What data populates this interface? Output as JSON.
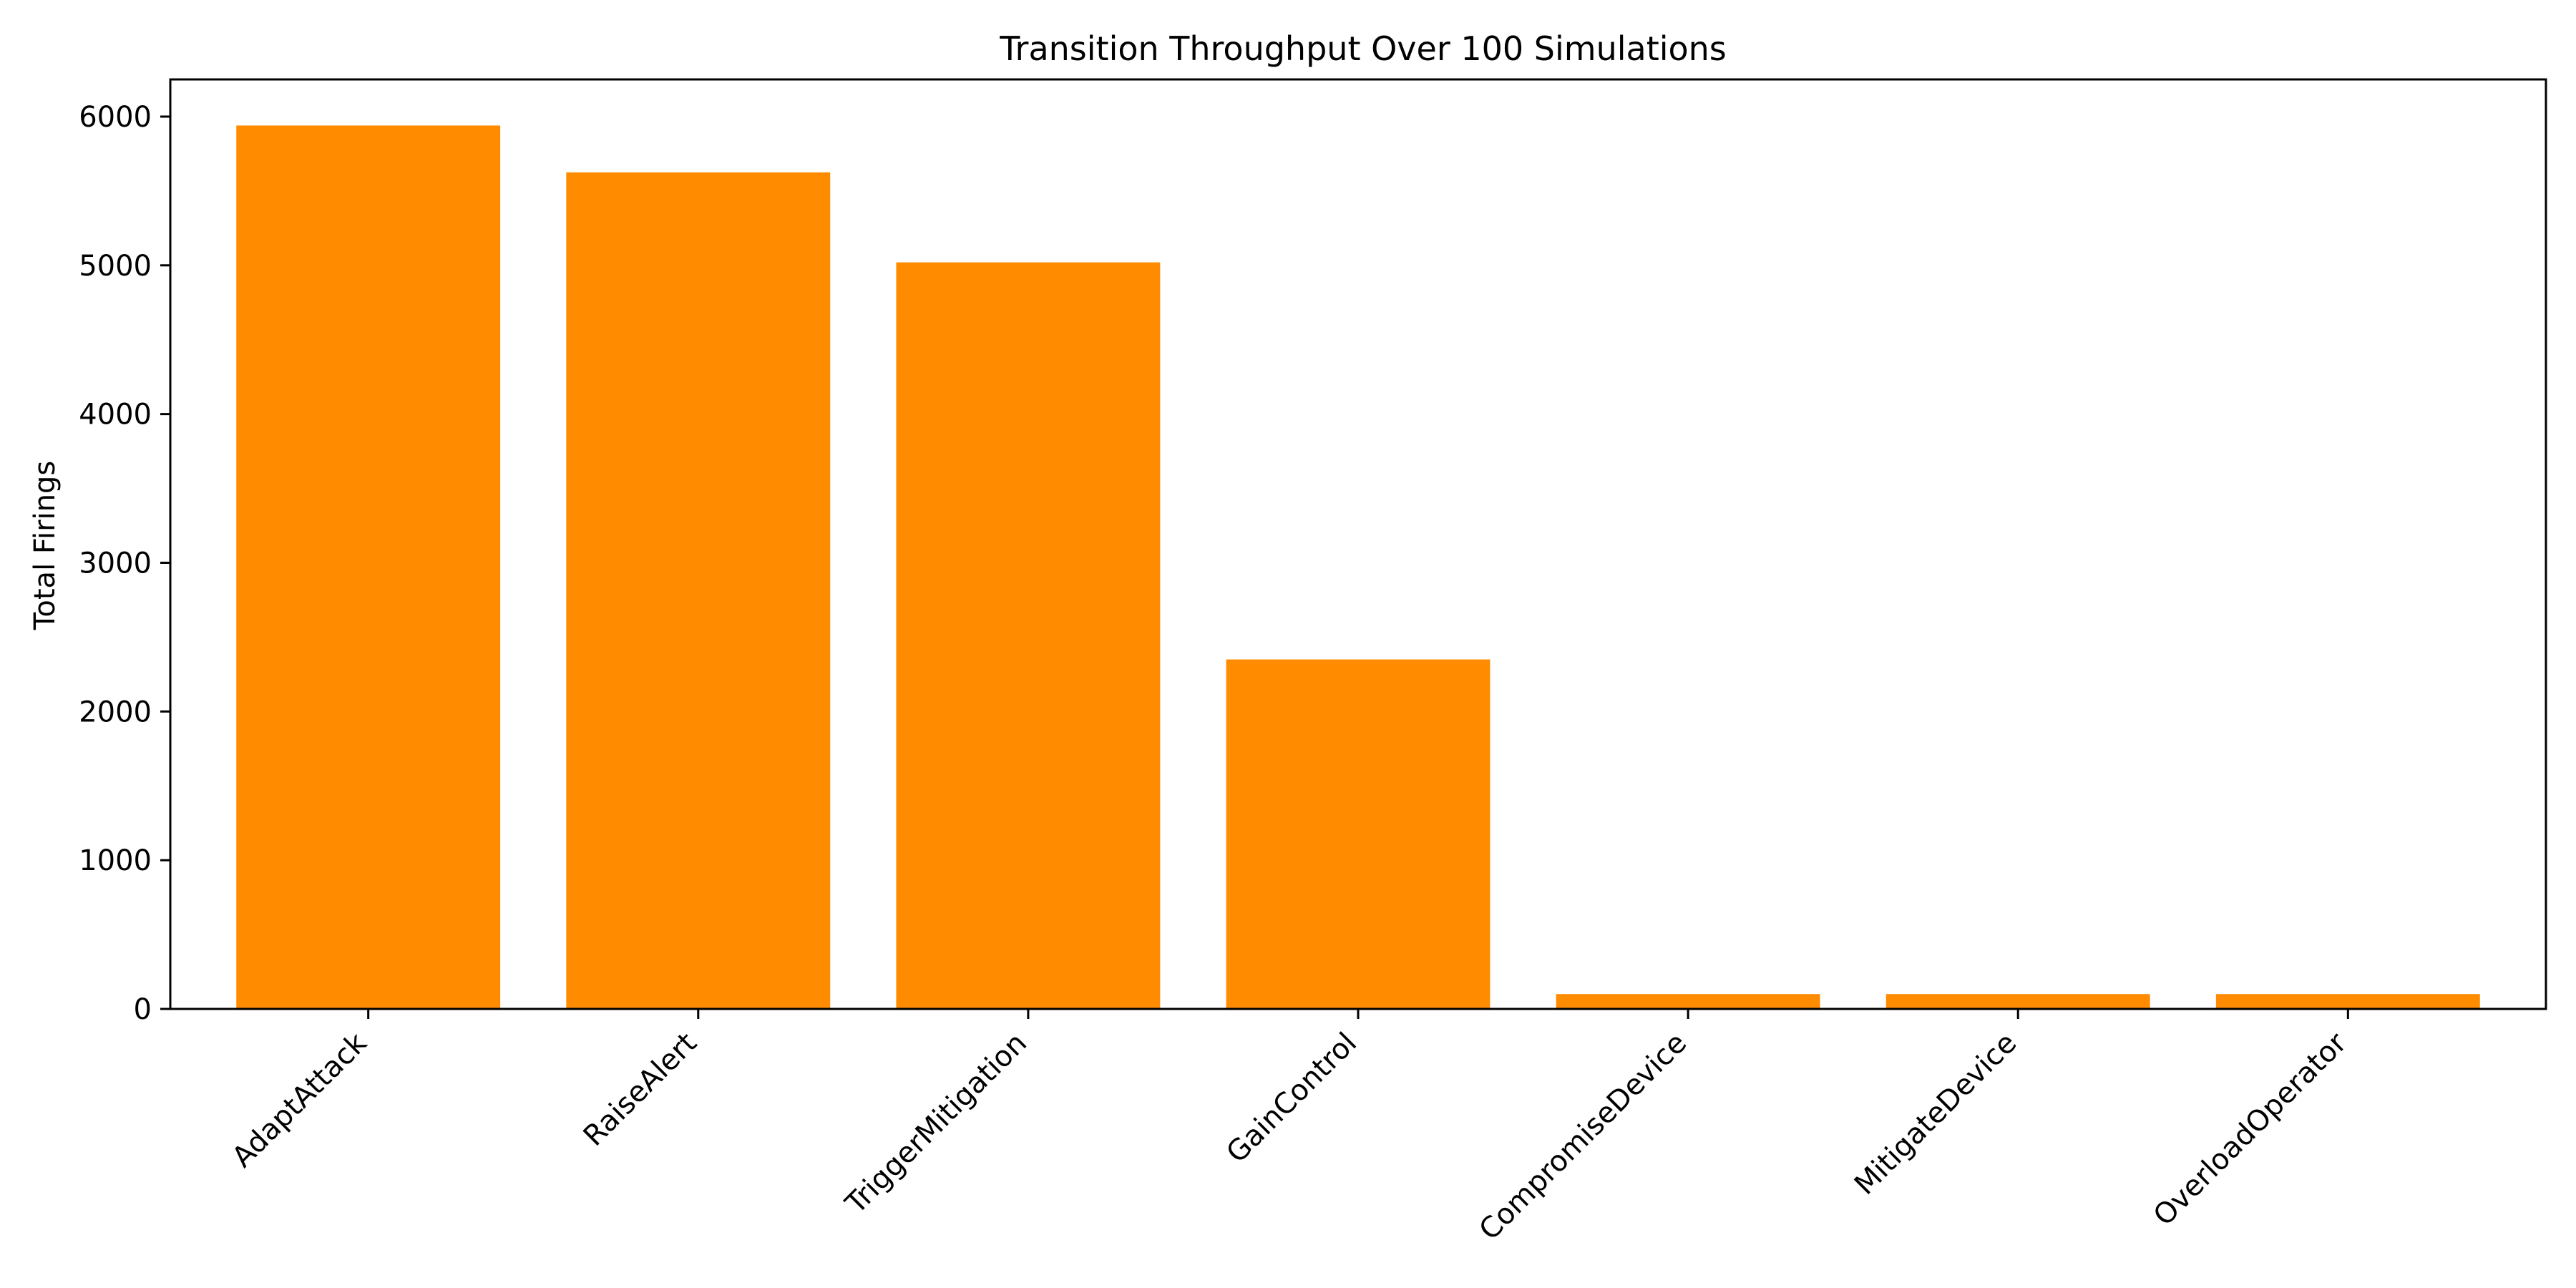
{
  "chart_data": {
    "type": "bar",
    "title": "Transition Throughput Over 100 Simulations",
    "xlabel": "",
    "ylabel": "Total Firings",
    "categories": [
      "AdaptAttack",
      "RaiseAlert",
      "TriggerMitigation",
      "GainControl",
      "CompromiseDevice",
      "MitigateDevice",
      "OverloadOperator"
    ],
    "values": [
      5940,
      5625,
      5020,
      2350,
      100,
      100,
      100
    ],
    "ylim": [
      0,
      6250
    ],
    "yticks": [
      0,
      1000,
      2000,
      3000,
      4000,
      5000,
      6000
    ],
    "bar_color": "#ff8c00",
    "grid": false,
    "legend": "none"
  }
}
